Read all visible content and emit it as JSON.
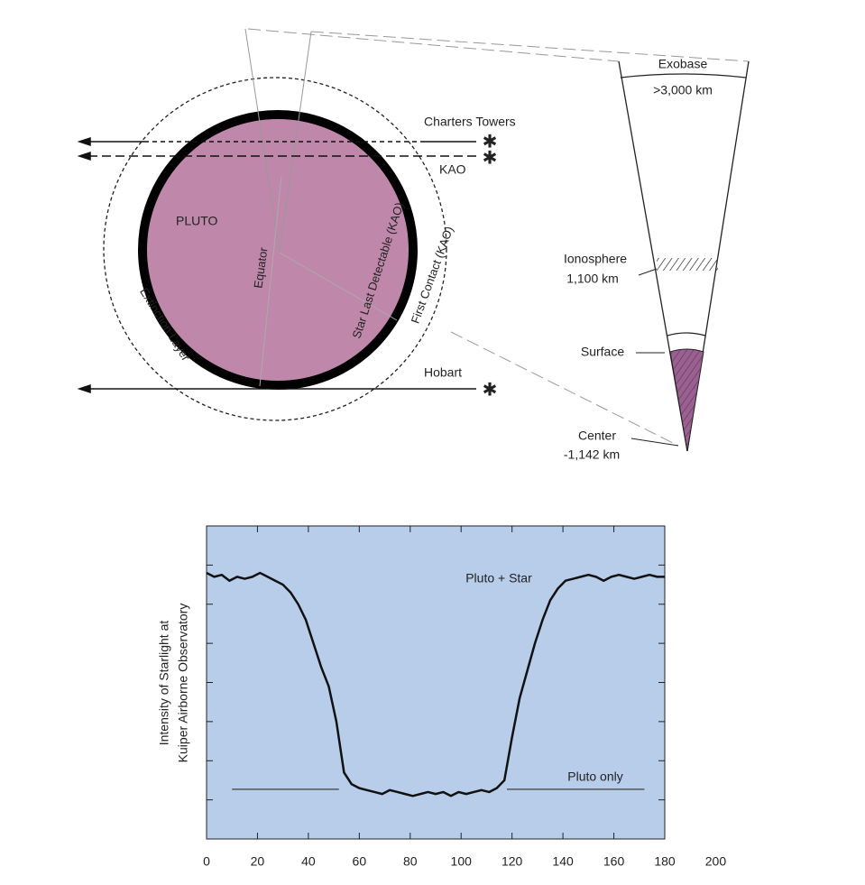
{
  "diagram": {
    "pluto": "PLUTO",
    "equator": "Equator",
    "star_last": "Star Last Detectable (KAO)",
    "first_contact": "First Contact (KAO)",
    "extinction": "Extinction Layer",
    "charters": "Charters Towers",
    "kao": "KAO",
    "hobart": "Hobart",
    "exobase": "Exobase",
    "exobase_alt": ">3,000 km",
    "ionosphere": "Ionosphere",
    "ionosphere_alt": "1,100 km",
    "surface": "Surface",
    "center": "Center",
    "center_alt": "-1,142 km"
  },
  "chart_data": {
    "type": "line",
    "ylabel": [
      "Intensity of Starlight at",
      "Kuiper Airborne Observatory"
    ],
    "xlim": [
      0,
      180
    ],
    "xticks": [
      0,
      20,
      40,
      60,
      80,
      100,
      120,
      140,
      160,
      180,
      200
    ],
    "ylim": [
      0,
      8
    ],
    "yticks": [
      1,
      2,
      3,
      4,
      5,
      6,
      7
    ],
    "background": "#b8cde9",
    "series": [
      {
        "name": "Pluto + Star",
        "color": "#111111",
        "x": [
          0,
          3,
          6,
          9,
          12,
          15,
          18,
          21,
          24,
          27,
          30,
          33,
          36,
          39,
          42,
          45,
          48,
          51,
          54,
          57,
          60,
          63,
          66,
          69,
          72,
          75,
          78,
          81,
          84,
          87,
          90,
          93,
          96,
          99,
          102,
          105,
          108,
          111,
          114,
          117,
          120,
          123,
          126,
          129,
          132,
          135,
          138,
          141,
          144,
          147,
          150,
          153,
          156,
          159,
          162,
          165,
          168,
          171,
          174,
          177,
          180
        ],
        "values": [
          6.8,
          6.7,
          6.75,
          6.6,
          6.7,
          6.65,
          6.7,
          6.8,
          6.7,
          6.6,
          6.5,
          6.3,
          6.0,
          5.6,
          5.0,
          4.4,
          3.9,
          3.0,
          1.7,
          1.4,
          1.3,
          1.25,
          1.2,
          1.15,
          1.25,
          1.2,
          1.15,
          1.1,
          1.15,
          1.2,
          1.15,
          1.2,
          1.1,
          1.2,
          1.15,
          1.2,
          1.25,
          1.2,
          1.3,
          1.5,
          2.6,
          3.6,
          4.3,
          5.0,
          5.6,
          6.1,
          6.4,
          6.6,
          6.65,
          6.7,
          6.75,
          6.7,
          6.6,
          6.7,
          6.75,
          6.7,
          6.65,
          6.7,
          6.75,
          6.7,
          6.7
        ]
      },
      {
        "name": "Pluto only",
        "color": "#555555",
        "x": [
          10,
          52,
          null,
          118,
          172
        ],
        "values": [
          1.27,
          1.27,
          null,
          1.27,
          1.27
        ]
      }
    ]
  }
}
